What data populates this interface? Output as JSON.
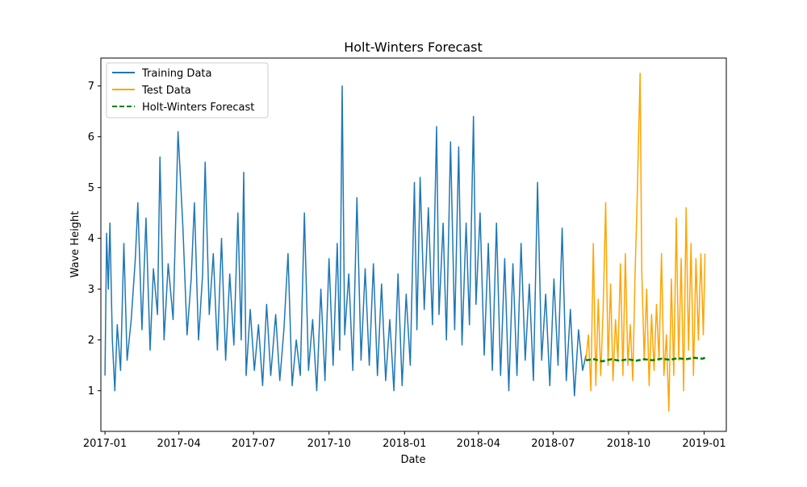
{
  "chart_data": {
    "type": "line",
    "title": "Holt-Winters Forecast",
    "xlabel": "Date",
    "ylabel": "Wave Height",
    "xlim": [
      "2016-12-27",
      "2019-01-28"
    ],
    "ylim": [
      0.2,
      7.55
    ],
    "x_ticks": [
      "2017-01",
      "2017-04",
      "2017-07",
      "2017-10",
      "2018-01",
      "2018-04",
      "2018-07",
      "2018-10",
      "2019-01"
    ],
    "y_ticks": [
      1,
      2,
      3,
      4,
      5,
      6,
      7
    ],
    "grid": false,
    "legend_position": "top-left",
    "series": [
      {
        "name": "Training Data",
        "color": "#1f77b4",
        "style": "solid",
        "points": [
          [
            "2017-01-01",
            1.3
          ],
          [
            "2017-01-03",
            4.1
          ],
          [
            "2017-01-05",
            3.0
          ],
          [
            "2017-01-07",
            4.3
          ],
          [
            "2017-01-10",
            2.0
          ],
          [
            "2017-01-13",
            1.0
          ],
          [
            "2017-01-16",
            2.3
          ],
          [
            "2017-01-20",
            1.4
          ],
          [
            "2017-01-24",
            3.9
          ],
          [
            "2017-01-28",
            1.6
          ],
          [
            "2017-02-02",
            2.4
          ],
          [
            "2017-02-07",
            3.6
          ],
          [
            "2017-02-10",
            4.7
          ],
          [
            "2017-02-15",
            2.2
          ],
          [
            "2017-02-20",
            4.4
          ],
          [
            "2017-02-25",
            1.8
          ],
          [
            "2017-03-01",
            3.4
          ],
          [
            "2017-03-06",
            2.5
          ],
          [
            "2017-03-09",
            5.6
          ],
          [
            "2017-03-14",
            2.0
          ],
          [
            "2017-03-19",
            3.5
          ],
          [
            "2017-03-25",
            2.4
          ],
          [
            "2017-03-31",
            6.1
          ],
          [
            "2017-04-02",
            5.5
          ],
          [
            "2017-04-06",
            4.2
          ],
          [
            "2017-04-11",
            2.1
          ],
          [
            "2017-04-16",
            3.2
          ],
          [
            "2017-04-20",
            4.7
          ],
          [
            "2017-04-25",
            2.0
          ],
          [
            "2017-04-30",
            3.3
          ],
          [
            "2017-05-03",
            5.5
          ],
          [
            "2017-05-08",
            2.5
          ],
          [
            "2017-05-13",
            3.7
          ],
          [
            "2017-05-18",
            1.8
          ],
          [
            "2017-05-23",
            4.0
          ],
          [
            "2017-05-28",
            1.6
          ],
          [
            "2017-06-02",
            3.3
          ],
          [
            "2017-06-07",
            1.9
          ],
          [
            "2017-06-12",
            4.5
          ],
          [
            "2017-06-16",
            2.0
          ],
          [
            "2017-06-19",
            5.3
          ],
          [
            "2017-06-22",
            1.3
          ],
          [
            "2017-06-27",
            2.6
          ],
          [
            "2017-07-02",
            1.4
          ],
          [
            "2017-07-07",
            2.3
          ],
          [
            "2017-07-12",
            1.1
          ],
          [
            "2017-07-17",
            2.7
          ],
          [
            "2017-07-22",
            1.3
          ],
          [
            "2017-07-28",
            2.5
          ],
          [
            "2017-08-02",
            1.2
          ],
          [
            "2017-08-07",
            2.2
          ],
          [
            "2017-08-12",
            3.7
          ],
          [
            "2017-08-17",
            1.1
          ],
          [
            "2017-08-22",
            2.0
          ],
          [
            "2017-08-27",
            1.3
          ],
          [
            "2017-09-01",
            4.5
          ],
          [
            "2017-09-06",
            1.4
          ],
          [
            "2017-09-11",
            2.4
          ],
          [
            "2017-09-16",
            1.0
          ],
          [
            "2017-09-21",
            3.0
          ],
          [
            "2017-09-26",
            1.2
          ],
          [
            "2017-10-01",
            3.6
          ],
          [
            "2017-10-06",
            1.5
          ],
          [
            "2017-10-11",
            3.9
          ],
          [
            "2017-10-14",
            1.8
          ],
          [
            "2017-10-17",
            7.0
          ],
          [
            "2017-10-20",
            2.1
          ],
          [
            "2017-10-25",
            3.3
          ],
          [
            "2017-10-30",
            1.4
          ],
          [
            "2017-11-04",
            4.8
          ],
          [
            "2017-11-09",
            1.6
          ],
          [
            "2017-11-14",
            3.4
          ],
          [
            "2017-11-19",
            1.5
          ],
          [
            "2017-11-24",
            3.5
          ],
          [
            "2017-11-29",
            1.3
          ],
          [
            "2017-12-04",
            3.1
          ],
          [
            "2017-12-09",
            1.2
          ],
          [
            "2017-12-14",
            2.4
          ],
          [
            "2017-12-19",
            1.0
          ],
          [
            "2017-12-24",
            3.3
          ],
          [
            "2017-12-29",
            1.1
          ],
          [
            "2018-01-03",
            2.9
          ],
          [
            "2018-01-08",
            1.5
          ],
          [
            "2018-01-13",
            5.1
          ],
          [
            "2018-01-16",
            2.2
          ],
          [
            "2018-01-20",
            5.2
          ],
          [
            "2018-01-25",
            2.6
          ],
          [
            "2018-01-30",
            4.6
          ],
          [
            "2018-02-04",
            2.3
          ],
          [
            "2018-02-09",
            6.2
          ],
          [
            "2018-02-12",
            2.5
          ],
          [
            "2018-02-17",
            4.3
          ],
          [
            "2018-02-21",
            2.0
          ],
          [
            "2018-02-26",
            5.9
          ],
          [
            "2018-03-03",
            2.2
          ],
          [
            "2018-03-08",
            5.8
          ],
          [
            "2018-03-12",
            1.9
          ],
          [
            "2018-03-17",
            4.3
          ],
          [
            "2018-03-21",
            2.3
          ],
          [
            "2018-03-26",
            6.4
          ],
          [
            "2018-03-29",
            2.7
          ],
          [
            "2018-04-03",
            4.5
          ],
          [
            "2018-04-08",
            1.7
          ],
          [
            "2018-04-13",
            3.9
          ],
          [
            "2018-04-18",
            1.4
          ],
          [
            "2018-04-23",
            4.3
          ],
          [
            "2018-04-28",
            1.3
          ],
          [
            "2018-05-03",
            3.6
          ],
          [
            "2018-05-08",
            1.0
          ],
          [
            "2018-05-13",
            3.5
          ],
          [
            "2018-05-18",
            1.3
          ],
          [
            "2018-05-23",
            3.9
          ],
          [
            "2018-05-28",
            1.6
          ],
          [
            "2018-06-02",
            3.1
          ],
          [
            "2018-06-07",
            1.2
          ],
          [
            "2018-06-12",
            5.1
          ],
          [
            "2018-06-17",
            1.6
          ],
          [
            "2018-06-22",
            2.9
          ],
          [
            "2018-06-27",
            1.1
          ],
          [
            "2018-07-02",
            3.2
          ],
          [
            "2018-07-07",
            1.5
          ],
          [
            "2018-07-12",
            4.2
          ],
          [
            "2018-07-17",
            1.2
          ],
          [
            "2018-07-22",
            2.6
          ],
          [
            "2018-07-27",
            0.9
          ],
          [
            "2018-08-01",
            2.2
          ],
          [
            "2018-08-06",
            1.4
          ],
          [
            "2018-08-10",
            1.7
          ]
        ]
      },
      {
        "name": "Test Data",
        "color": "#ffa500",
        "style": "solid",
        "points": [
          [
            "2018-08-10",
            1.6
          ],
          [
            "2018-08-13",
            2.1
          ],
          [
            "2018-08-16",
            1.0
          ],
          [
            "2018-08-19",
            3.9
          ],
          [
            "2018-08-22",
            1.1
          ],
          [
            "2018-08-25",
            2.8
          ],
          [
            "2018-08-28",
            1.3
          ],
          [
            "2018-08-31",
            2.6
          ],
          [
            "2018-09-03",
            4.7
          ],
          [
            "2018-09-06",
            1.5
          ],
          [
            "2018-09-09",
            3.1
          ],
          [
            "2018-09-12",
            1.2
          ],
          [
            "2018-09-15",
            2.4
          ],
          [
            "2018-09-18",
            1.6
          ],
          [
            "2018-09-21",
            3.5
          ],
          [
            "2018-09-24",
            1.3
          ],
          [
            "2018-09-27",
            3.7
          ],
          [
            "2018-09-30",
            1.5
          ],
          [
            "2018-10-03",
            2.3
          ],
          [
            "2018-10-06",
            1.2
          ],
          [
            "2018-10-09",
            3.4
          ],
          [
            "2018-10-11",
            4.5
          ],
          [
            "2018-10-13",
            5.9
          ],
          [
            "2018-10-15",
            7.25
          ],
          [
            "2018-10-17",
            3.4
          ],
          [
            "2018-10-20",
            1.6
          ],
          [
            "2018-10-23",
            3.0
          ],
          [
            "2018-10-26",
            1.1
          ],
          [
            "2018-10-29",
            2.5
          ],
          [
            "2018-11-01",
            1.4
          ],
          [
            "2018-11-04",
            2.7
          ],
          [
            "2018-11-07",
            1.6
          ],
          [
            "2018-11-10",
            3.7
          ],
          [
            "2018-11-13",
            1.3
          ],
          [
            "2018-11-16",
            2.1
          ],
          [
            "2018-11-19",
            0.6
          ],
          [
            "2018-11-22",
            3.2
          ],
          [
            "2018-11-25",
            1.3
          ],
          [
            "2018-11-28",
            4.4
          ],
          [
            "2018-12-01",
            1.6
          ],
          [
            "2018-12-04",
            3.6
          ],
          [
            "2018-12-07",
            1.0
          ],
          [
            "2018-12-10",
            4.6
          ],
          [
            "2018-12-13",
            1.8
          ],
          [
            "2018-12-16",
            3.9
          ],
          [
            "2018-12-19",
            1.3
          ],
          [
            "2018-12-22",
            3.6
          ],
          [
            "2018-12-25",
            2.0
          ],
          [
            "2018-12-28",
            3.7
          ],
          [
            "2018-12-31",
            2.1
          ],
          [
            "2019-01-02",
            3.7
          ]
        ]
      },
      {
        "name": "Holt-Winters Forecast",
        "color": "#008000",
        "style": "dashed",
        "points": [
          [
            "2018-08-10",
            1.6
          ],
          [
            "2018-08-20",
            1.62
          ],
          [
            "2018-08-30",
            1.58
          ],
          [
            "2018-09-10",
            1.62
          ],
          [
            "2018-09-20",
            1.59
          ],
          [
            "2018-09-30",
            1.62
          ],
          [
            "2018-10-10",
            1.59
          ],
          [
            "2018-10-20",
            1.62
          ],
          [
            "2018-10-30",
            1.6
          ],
          [
            "2018-11-10",
            1.63
          ],
          [
            "2018-11-20",
            1.61
          ],
          [
            "2018-11-30",
            1.64
          ],
          [
            "2018-12-10",
            1.62
          ],
          [
            "2018-12-20",
            1.65
          ],
          [
            "2018-12-30",
            1.63
          ],
          [
            "2019-01-02",
            1.65
          ]
        ]
      }
    ]
  }
}
